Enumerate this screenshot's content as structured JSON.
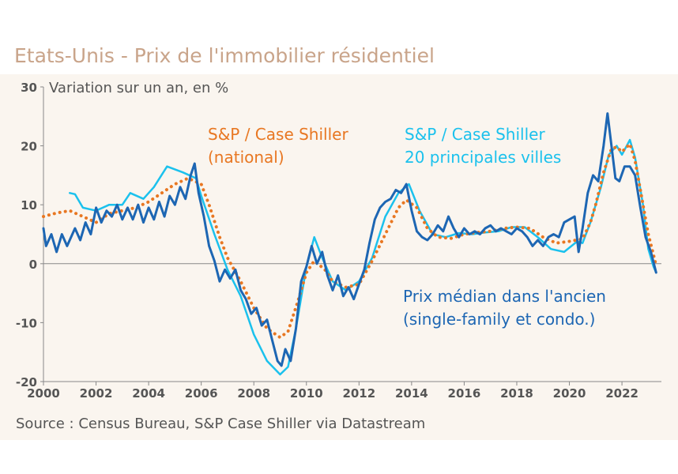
{
  "title": "Etats-Unis - Prix de l'immobilier résidentiel",
  "source": "Source : Census Bureau, S&P Case Shiller via Datastream",
  "chart_data": {
    "type": "line",
    "title": "Etats-Unis - Prix de l'immobilier résidentiel",
    "ylabel": "Variation sur un an, en %",
    "xlabel": "",
    "xlim": [
      2000,
      2023.5
    ],
    "ylim": [
      -20,
      30
    ],
    "xticks": [
      2000,
      2002,
      2004,
      2006,
      2008,
      2010,
      2012,
      2014,
      2016,
      2018,
      2020,
      2022
    ],
    "yticks": [
      -20,
      -10,
      0,
      10,
      20,
      30
    ],
    "xtick_labels": [
      "2000",
      "2002",
      "2004",
      "2006",
      "2008",
      "2010",
      "2012",
      "2014",
      "2016",
      "2018",
      "2020",
      "2022"
    ],
    "ytick_labels": [
      "-20",
      "-10",
      "0",
      "10",
      "20",
      "30"
    ],
    "annotations": {
      "national": [
        "S&P / Case Shiller",
        "(national)"
      ],
      "cities": [
        "S&P / Case Shiller",
        "20 principales villes"
      ],
      "median": [
        "Prix médian dans l'ancien",
        "(single-family et condo.)"
      ]
    },
    "series": [
      {
        "name": "S&P / Case Shiller (national)",
        "color": "#e87722",
        "style": "dotted",
        "points": [
          [
            2000.0,
            8.0
          ],
          [
            2000.5,
            8.6
          ],
          [
            2001.0,
            9.0
          ],
          [
            2001.5,
            8.0
          ],
          [
            2002.0,
            7.0
          ],
          [
            2002.5,
            8.5
          ],
          [
            2003.0,
            9.0
          ],
          [
            2003.5,
            9.5
          ],
          [
            2004.0,
            10.5
          ],
          [
            2004.5,
            12.0
          ],
          [
            2005.0,
            13.5
          ],
          [
            2005.5,
            14.5
          ],
          [
            2006.0,
            13.5
          ],
          [
            2006.3,
            10.0
          ],
          [
            2006.7,
            4.5
          ],
          [
            2007.0,
            1.0
          ],
          [
            2007.5,
            -3.0
          ],
          [
            2008.0,
            -7.5
          ],
          [
            2008.5,
            -11.0
          ],
          [
            2009.0,
            -12.5
          ],
          [
            2009.3,
            -11.5
          ],
          [
            2009.7,
            -6.0
          ],
          [
            2010.0,
            -1.5
          ],
          [
            2010.3,
            0.5
          ],
          [
            2010.7,
            -1.0
          ],
          [
            2011.0,
            -3.0
          ],
          [
            2011.5,
            -4.0
          ],
          [
            2012.0,
            -3.5
          ],
          [
            2012.5,
            0.5
          ],
          [
            2013.0,
            5.0
          ],
          [
            2013.5,
            9.5
          ],
          [
            2013.8,
            10.8
          ],
          [
            2014.2,
            9.5
          ],
          [
            2014.6,
            6.0
          ],
          [
            2015.0,
            4.5
          ],
          [
            2015.5,
            4.3
          ],
          [
            2016.0,
            5.0
          ],
          [
            2016.5,
            5.3
          ],
          [
            2017.0,
            5.5
          ],
          [
            2017.5,
            6.0
          ],
          [
            2018.0,
            6.2
          ],
          [
            2018.5,
            6.0
          ],
          [
            2019.0,
            4.5
          ],
          [
            2019.5,
            3.5
          ],
          [
            2020.0,
            3.8
          ],
          [
            2020.5,
            4.2
          ],
          [
            2020.8,
            7.0
          ],
          [
            2021.0,
            10.0
          ],
          [
            2021.3,
            15.5
          ],
          [
            2021.6,
            19.5
          ],
          [
            2021.8,
            19.8
          ],
          [
            2022.0,
            19.0
          ],
          [
            2022.3,
            20.3
          ],
          [
            2022.5,
            17.5
          ],
          [
            2022.7,
            12.5
          ],
          [
            2023.0,
            5.0
          ],
          [
            2023.2,
            1.5
          ],
          [
            2023.3,
            -0.3
          ]
        ]
      },
      {
        "name": "S&P / Case Shiller 20 principales villes",
        "color": "#1bc1ed",
        "style": "solid",
        "points": [
          [
            2001.0,
            12.0
          ],
          [
            2001.2,
            11.8
          ],
          [
            2001.5,
            9.5
          ],
          [
            2002.0,
            9.0
          ],
          [
            2002.5,
            10.0
          ],
          [
            2003.0,
            10.0
          ],
          [
            2003.3,
            12.0
          ],
          [
            2003.8,
            11.0
          ],
          [
            2004.2,
            13.0
          ],
          [
            2004.7,
            16.5
          ],
          [
            2005.0,
            16.0
          ],
          [
            2005.3,
            15.5
          ],
          [
            2005.8,
            14.5
          ],
          [
            2006.0,
            11.5
          ],
          [
            2006.5,
            5.0
          ],
          [
            2007.0,
            -1.0
          ],
          [
            2007.5,
            -5.5
          ],
          [
            2008.0,
            -12.0
          ],
          [
            2008.5,
            -16.5
          ],
          [
            2009.0,
            -18.8
          ],
          [
            2009.3,
            -17.5
          ],
          [
            2009.6,
            -11.0
          ],
          [
            2010.0,
            -0.5
          ],
          [
            2010.3,
            4.5
          ],
          [
            2010.6,
            1.0
          ],
          [
            2011.0,
            -3.0
          ],
          [
            2011.5,
            -4.5
          ],
          [
            2012.0,
            -3.0
          ],
          [
            2012.5,
            1.0
          ],
          [
            2013.0,
            8.0
          ],
          [
            2013.5,
            12.0
          ],
          [
            2013.9,
            13.5
          ],
          [
            2014.3,
            9.0
          ],
          [
            2014.8,
            5.0
          ],
          [
            2015.3,
            4.5
          ],
          [
            2015.8,
            5.2
          ],
          [
            2016.3,
            5.0
          ],
          [
            2016.8,
            5.3
          ],
          [
            2017.3,
            5.5
          ],
          [
            2017.8,
            6.2
          ],
          [
            2018.3,
            6.2
          ],
          [
            2018.8,
            4.5
          ],
          [
            2019.3,
            2.5
          ],
          [
            2019.8,
            2.0
          ],
          [
            2020.3,
            3.8
          ],
          [
            2020.5,
            3.5
          ],
          [
            2020.8,
            7.0
          ],
          [
            2021.2,
            13.0
          ],
          [
            2021.5,
            18.5
          ],
          [
            2021.8,
            20.0
          ],
          [
            2022.0,
            18.5
          ],
          [
            2022.3,
            21.0
          ],
          [
            2022.5,
            18.0
          ],
          [
            2022.8,
            10.0
          ],
          [
            2023.0,
            2.5
          ],
          [
            2023.2,
            -0.5
          ],
          [
            2023.3,
            -1.5
          ]
        ]
      },
      {
        "name": "Prix médian dans l'ancien (single-family et condo.)",
        "color": "#1d66b3",
        "style": "solid",
        "points": [
          [
            2000.0,
            6.0
          ],
          [
            2000.1,
            3.0
          ],
          [
            2000.3,
            5.0
          ],
          [
            2000.5,
            2.0
          ],
          [
            2000.7,
            5.0
          ],
          [
            2000.9,
            3.0
          ],
          [
            2001.2,
            6.0
          ],
          [
            2001.4,
            4.0
          ],
          [
            2001.6,
            7.0
          ],
          [
            2001.8,
            5.0
          ],
          [
            2002.0,
            9.5
          ],
          [
            2002.2,
            7.0
          ],
          [
            2002.4,
            9.0
          ],
          [
            2002.6,
            8.0
          ],
          [
            2002.8,
            10.0
          ],
          [
            2003.0,
            7.5
          ],
          [
            2003.2,
            9.5
          ],
          [
            2003.4,
            7.5
          ],
          [
            2003.6,
            10.0
          ],
          [
            2003.8,
            7.0
          ],
          [
            2004.0,
            9.5
          ],
          [
            2004.2,
            7.5
          ],
          [
            2004.4,
            10.5
          ],
          [
            2004.6,
            8.0
          ],
          [
            2004.8,
            11.5
          ],
          [
            2005.0,
            10.0
          ],
          [
            2005.2,
            13.0
          ],
          [
            2005.4,
            11.0
          ],
          [
            2005.6,
            15.0
          ],
          [
            2005.75,
            17.0
          ],
          [
            2005.9,
            12.0
          ],
          [
            2006.1,
            8.0
          ],
          [
            2006.3,
            3.0
          ],
          [
            2006.5,
            0.5
          ],
          [
            2006.7,
            -3.0
          ],
          [
            2006.9,
            -1.0
          ],
          [
            2007.1,
            -2.5
          ],
          [
            2007.3,
            -1.0
          ],
          [
            2007.5,
            -4.5
          ],
          [
            2007.7,
            -6.0
          ],
          [
            2007.9,
            -8.5
          ],
          [
            2008.1,
            -7.5
          ],
          [
            2008.3,
            -10.5
          ],
          [
            2008.5,
            -9.5
          ],
          [
            2008.7,
            -13.0
          ],
          [
            2008.9,
            -16.5
          ],
          [
            2009.05,
            -17.3
          ],
          [
            2009.2,
            -14.5
          ],
          [
            2009.4,
            -16.5
          ],
          [
            2009.6,
            -11.0
          ],
          [
            2009.8,
            -3.0
          ],
          [
            2010.0,
            -0.5
          ],
          [
            2010.2,
            3.0
          ],
          [
            2010.4,
            0.0
          ],
          [
            2010.6,
            2.0
          ],
          [
            2010.8,
            -2.0
          ],
          [
            2011.0,
            -4.5
          ],
          [
            2011.2,
            -2.0
          ],
          [
            2011.4,
            -5.5
          ],
          [
            2011.6,
            -4.0
          ],
          [
            2011.8,
            -6.0
          ],
          [
            2012.0,
            -3.5
          ],
          [
            2012.2,
            -1.0
          ],
          [
            2012.4,
            3.5
          ],
          [
            2012.6,
            7.5
          ],
          [
            2012.8,
            9.5
          ],
          [
            2013.0,
            10.5
          ],
          [
            2013.2,
            11.0
          ],
          [
            2013.4,
            12.5
          ],
          [
            2013.6,
            12.0
          ],
          [
            2013.8,
            13.5
          ],
          [
            2014.0,
            9.0
          ],
          [
            2014.2,
            5.5
          ],
          [
            2014.4,
            4.5
          ],
          [
            2014.6,
            4.0
          ],
          [
            2014.8,
            5.0
          ],
          [
            2015.0,
            6.5
          ],
          [
            2015.2,
            5.5
          ],
          [
            2015.4,
            8.0
          ],
          [
            2015.6,
            6.0
          ],
          [
            2015.8,
            4.5
          ],
          [
            2016.0,
            6.0
          ],
          [
            2016.2,
            5.0
          ],
          [
            2016.4,
            5.5
          ],
          [
            2016.6,
            5.0
          ],
          [
            2016.8,
            6.0
          ],
          [
            2017.0,
            6.5
          ],
          [
            2017.2,
            5.5
          ],
          [
            2017.4,
            6.0
          ],
          [
            2017.6,
            5.5
          ],
          [
            2017.8,
            5.0
          ],
          [
            2018.0,
            6.0
          ],
          [
            2018.2,
            5.5
          ],
          [
            2018.4,
            4.5
          ],
          [
            2018.6,
            3.0
          ],
          [
            2018.8,
            4.0
          ],
          [
            2019.0,
            3.0
          ],
          [
            2019.2,
            4.5
          ],
          [
            2019.4,
            5.0
          ],
          [
            2019.6,
            4.5
          ],
          [
            2019.8,
            7.0
          ],
          [
            2020.0,
            7.5
          ],
          [
            2020.2,
            8.0
          ],
          [
            2020.35,
            2.0
          ],
          [
            2020.5,
            6.0
          ],
          [
            2020.7,
            12.0
          ],
          [
            2020.9,
            15.0
          ],
          [
            2021.1,
            14.0
          ],
          [
            2021.3,
            20.0
          ],
          [
            2021.45,
            25.5
          ],
          [
            2021.6,
            20.0
          ],
          [
            2021.75,
            14.5
          ],
          [
            2021.9,
            14.0
          ],
          [
            2022.1,
            16.5
          ],
          [
            2022.3,
            16.5
          ],
          [
            2022.5,
            15.0
          ],
          [
            2022.7,
            9.5
          ],
          [
            2022.9,
            4.5
          ],
          [
            2023.1,
            2.0
          ],
          [
            2023.3,
            -1.5
          ]
        ]
      }
    ]
  }
}
